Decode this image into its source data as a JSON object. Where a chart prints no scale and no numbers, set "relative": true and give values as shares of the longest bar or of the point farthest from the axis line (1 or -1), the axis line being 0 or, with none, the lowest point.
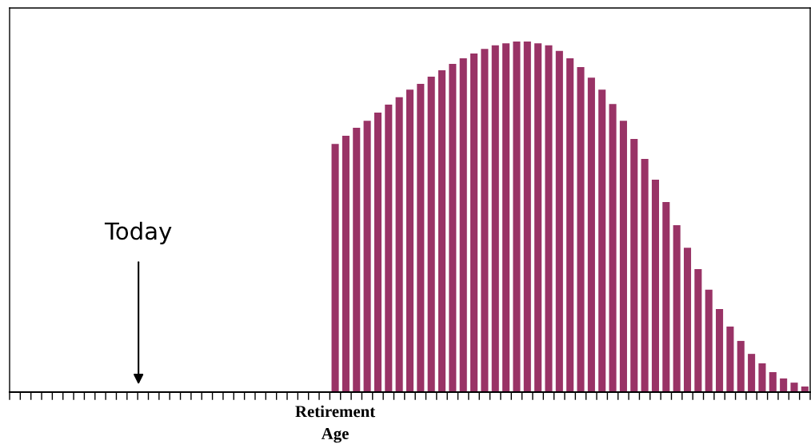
{
  "chart_data": {
    "type": "bar",
    "relative": true,
    "color": "#993366",
    "categories": [
      "Retirement\nAge",
      null,
      null,
      null,
      null,
      null,
      null,
      null,
      null,
      null,
      null,
      null,
      null,
      null,
      null,
      null,
      null,
      null,
      null,
      null,
      null,
      null,
      null,
      null,
      null,
      null,
      null,
      null,
      null,
      null,
      null,
      null,
      null,
      null,
      null,
      null,
      null,
      null,
      null,
      null,
      null,
      null,
      null,
      null,
      null
    ],
    "values": [
      0.708,
      0.731,
      0.754,
      0.774,
      0.797,
      0.82,
      0.841,
      0.863,
      0.879,
      0.9,
      0.918,
      0.936,
      0.952,
      0.966,
      0.979,
      0.989,
      0.995,
      1,
      1,
      0.995,
      0.989,
      0.973,
      0.952,
      0.927,
      0.897,
      0.863,
      0.822,
      0.774,
      0.722,
      0.665,
      0.606,
      0.542,
      0.476,
      0.412,
      0.351,
      0.292,
      0.237,
      0.187,
      0.146,
      0.109,
      0.082,
      0.057,
      0.039,
      0.027,
      0.016
    ],
    "annotations": [
      "Today"
    ],
    "grid": false,
    "legend": false
  }
}
